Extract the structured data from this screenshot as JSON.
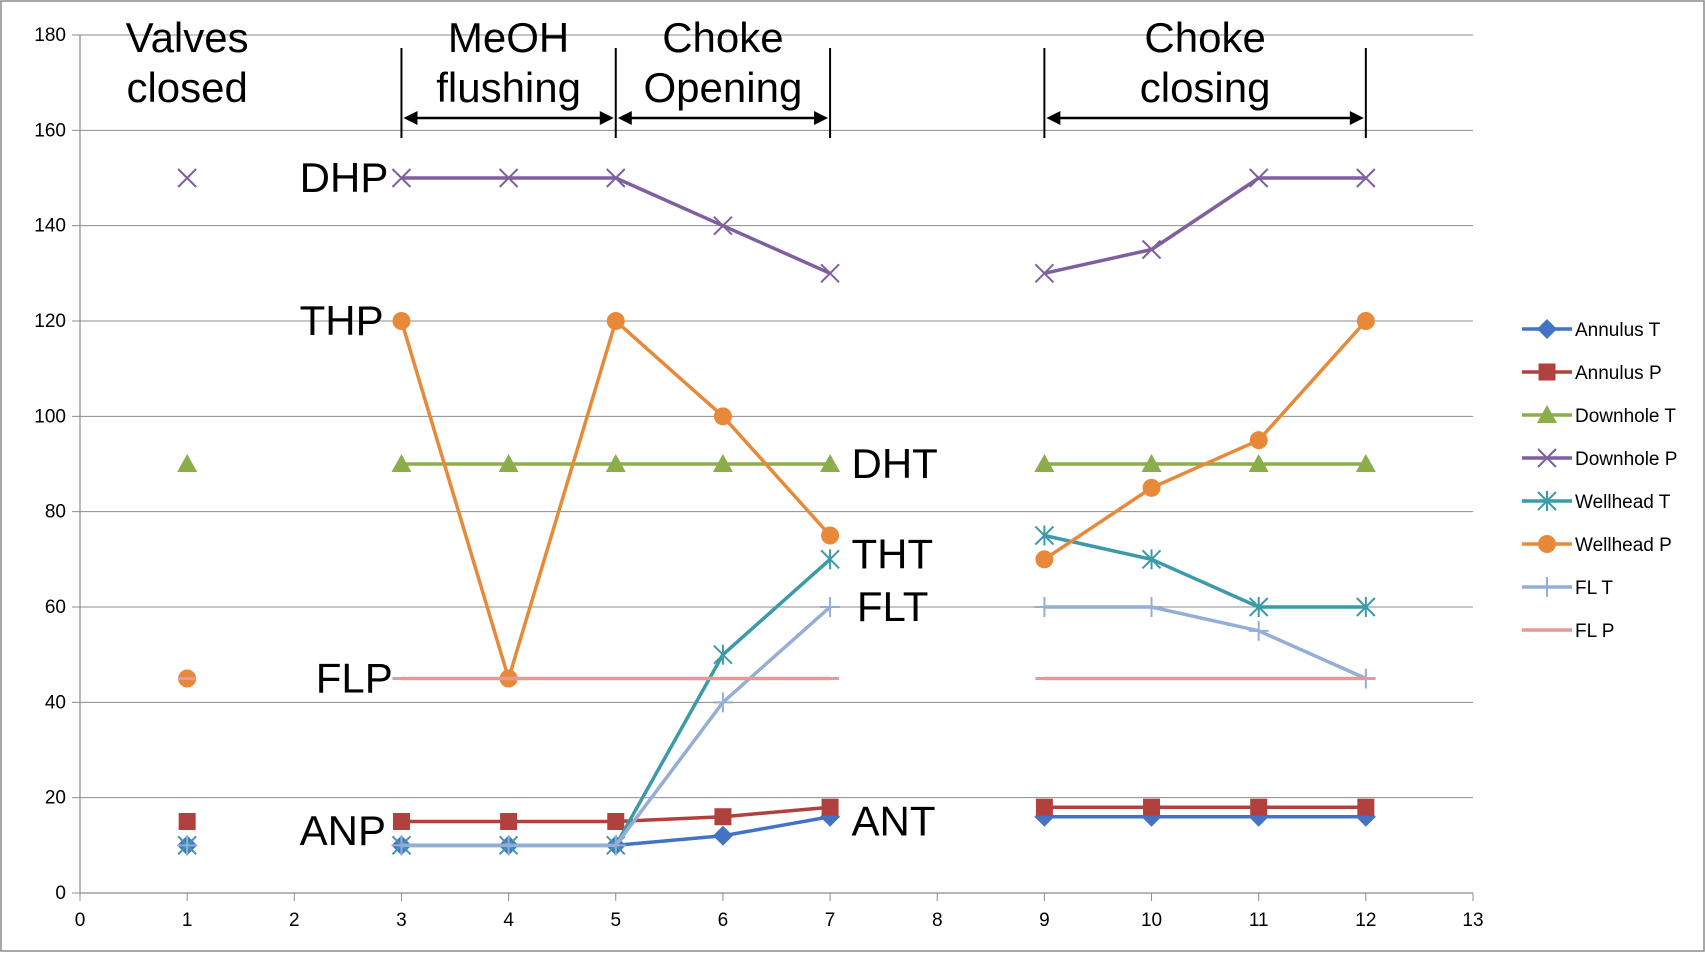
{
  "chart_data": {
    "type": "line",
    "title": "",
    "xlabel": "",
    "ylabel": "",
    "xlim": [
      0,
      13
    ],
    "ylim": [
      0,
      180
    ],
    "x_ticks": [
      0,
      1,
      2,
      3,
      4,
      5,
      6,
      7,
      8,
      9,
      10,
      11,
      12,
      13
    ],
    "y_ticks": [
      0,
      20,
      40,
      60,
      80,
      100,
      120,
      140,
      160,
      180
    ],
    "grid": "horizontal",
    "legend_position": "right",
    "series": [
      {
        "name": "Annulus T",
        "color": "#4472C4",
        "marker": "diamond",
        "points": [
          [
            1,
            10
          ],
          [
            3,
            10
          ],
          [
            4,
            10
          ],
          [
            5,
            10
          ],
          [
            6,
            12
          ],
          [
            7,
            16
          ],
          [
            9,
            16
          ],
          [
            10,
            16
          ],
          [
            11,
            16
          ],
          [
            12,
            16
          ]
        ],
        "segments": [
          [
            1
          ],
          [
            3,
            4,
            5,
            6,
            7
          ],
          [
            9,
            10,
            11,
            12
          ]
        ]
      },
      {
        "name": "Annulus P",
        "color": "#B0413E",
        "marker": "square",
        "points": [
          [
            1,
            15
          ],
          [
            3,
            15
          ],
          [
            4,
            15
          ],
          [
            5,
            15
          ],
          [
            6,
            16
          ],
          [
            7,
            18
          ],
          [
            9,
            18
          ],
          [
            10,
            18
          ],
          [
            11,
            18
          ],
          [
            12,
            18
          ]
        ],
        "segments": [
          [
            1
          ],
          [
            3,
            4,
            5,
            6,
            7
          ],
          [
            9,
            10,
            11,
            12
          ]
        ]
      },
      {
        "name": "Downhole T",
        "color": "#8BAE4A",
        "marker": "triangle",
        "points": [
          [
            1,
            90
          ],
          [
            3,
            90
          ],
          [
            4,
            90
          ],
          [
            5,
            90
          ],
          [
            6,
            90
          ],
          [
            7,
            90
          ],
          [
            9,
            90
          ],
          [
            10,
            90
          ],
          [
            11,
            90
          ],
          [
            12,
            90
          ]
        ],
        "segments": [
          [
            1
          ],
          [
            3,
            4,
            5,
            6,
            7
          ],
          [
            9,
            10,
            11,
            12
          ]
        ]
      },
      {
        "name": "Downhole P",
        "color": "#7E5FA0",
        "marker": "x",
        "points": [
          [
            1,
            150
          ],
          [
            3,
            150
          ],
          [
            4,
            150
          ],
          [
            5,
            150
          ],
          [
            6,
            140
          ],
          [
            7,
            130
          ],
          [
            9,
            130
          ],
          [
            10,
            135
          ],
          [
            11,
            150
          ],
          [
            12,
            150
          ]
        ],
        "segments": [
          [
            1
          ],
          [
            3,
            4,
            5,
            6,
            7
          ],
          [
            9,
            10,
            11,
            12
          ]
        ]
      },
      {
        "name": "Wellhead T",
        "color": "#3C9AAA",
        "marker": "asterisk",
        "points": [
          [
            1,
            10
          ],
          [
            3,
            10
          ],
          [
            4,
            10
          ],
          [
            5,
            10
          ],
          [
            6,
            50
          ],
          [
            7,
            70
          ],
          [
            9,
            75
          ],
          [
            10,
            70
          ],
          [
            11,
            60
          ],
          [
            12,
            60
          ]
        ],
        "segments": [
          [
            1
          ],
          [
            3,
            4,
            5,
            6,
            7
          ],
          [
            9,
            10,
            11,
            12
          ]
        ]
      },
      {
        "name": "Wellhead P",
        "color": "#E8893A",
        "marker": "circle",
        "points": [
          [
            1,
            45
          ],
          [
            3,
            120
          ],
          [
            4,
            45
          ],
          [
            5,
            120
          ],
          [
            6,
            100
          ],
          [
            7,
            75
          ],
          [
            9,
            70
          ],
          [
            10,
            85
          ],
          [
            11,
            95
          ],
          [
            12,
            120
          ]
        ],
        "segments": [
          [
            1
          ],
          [
            3,
            4,
            5,
            6,
            7
          ],
          [
            9,
            10,
            11,
            12
          ]
        ]
      },
      {
        "name": "FL T",
        "color": "#95AED6",
        "marker": "plus",
        "points": [
          [
            1,
            10
          ],
          [
            3,
            10
          ],
          [
            4,
            10
          ],
          [
            5,
            10
          ],
          [
            6,
            40
          ],
          [
            7,
            60
          ],
          [
            9,
            60
          ],
          [
            10,
            60
          ],
          [
            11,
            55
          ],
          [
            12,
            45
          ]
        ],
        "segments": [
          [
            1
          ],
          [
            3,
            4,
            5,
            6,
            7
          ],
          [
            9,
            10,
            11,
            12
          ]
        ]
      },
      {
        "name": "FL P",
        "color": "#E39A98",
        "marker": "dash",
        "points": [
          [
            1,
            45
          ],
          [
            3,
            45
          ],
          [
            4,
            45
          ],
          [
            5,
            45
          ],
          [
            6,
            45
          ],
          [
            7,
            45
          ],
          [
            9,
            45
          ],
          [
            10,
            45
          ],
          [
            11,
            45
          ],
          [
            12,
            45
          ]
        ],
        "segments": [
          [
            1
          ],
          [
            3,
            4,
            5,
            6,
            7
          ],
          [
            9,
            10,
            11,
            12
          ]
        ]
      }
    ],
    "annotations": {
      "phases": [
        {
          "label_lines": [
            "Valves",
            "closed"
          ],
          "x": 1
        },
        {
          "label_lines": [
            "MeOH",
            "flushing"
          ],
          "from": 3,
          "to": 5
        },
        {
          "label_lines": [
            "Choke",
            "Opening"
          ],
          "from": 5,
          "to": 7
        },
        {
          "label_lines": [
            "Choke",
            "closing"
          ],
          "from": 9,
          "to": 12
        }
      ],
      "series_tags": [
        {
          "text": "DHP",
          "x": 2.05,
          "y": 150,
          "anchor": "start"
        },
        {
          "text": "THP",
          "x": 2.05,
          "y": 120,
          "anchor": "start"
        },
        {
          "text": "FLP",
          "x": 2.2,
          "y": 45,
          "anchor": "start"
        },
        {
          "text": "ANP",
          "x": 2.05,
          "y": 13,
          "anchor": "start"
        },
        {
          "text": "DHT",
          "x": 7.2,
          "y": 90,
          "anchor": "start"
        },
        {
          "text": "THT",
          "x": 7.2,
          "y": 71,
          "anchor": "start"
        },
        {
          "text": "FLT",
          "x": 7.25,
          "y": 60,
          "anchor": "start"
        },
        {
          "text": "ANT",
          "x": 7.2,
          "y": 15,
          "anchor": "start"
        }
      ]
    }
  }
}
